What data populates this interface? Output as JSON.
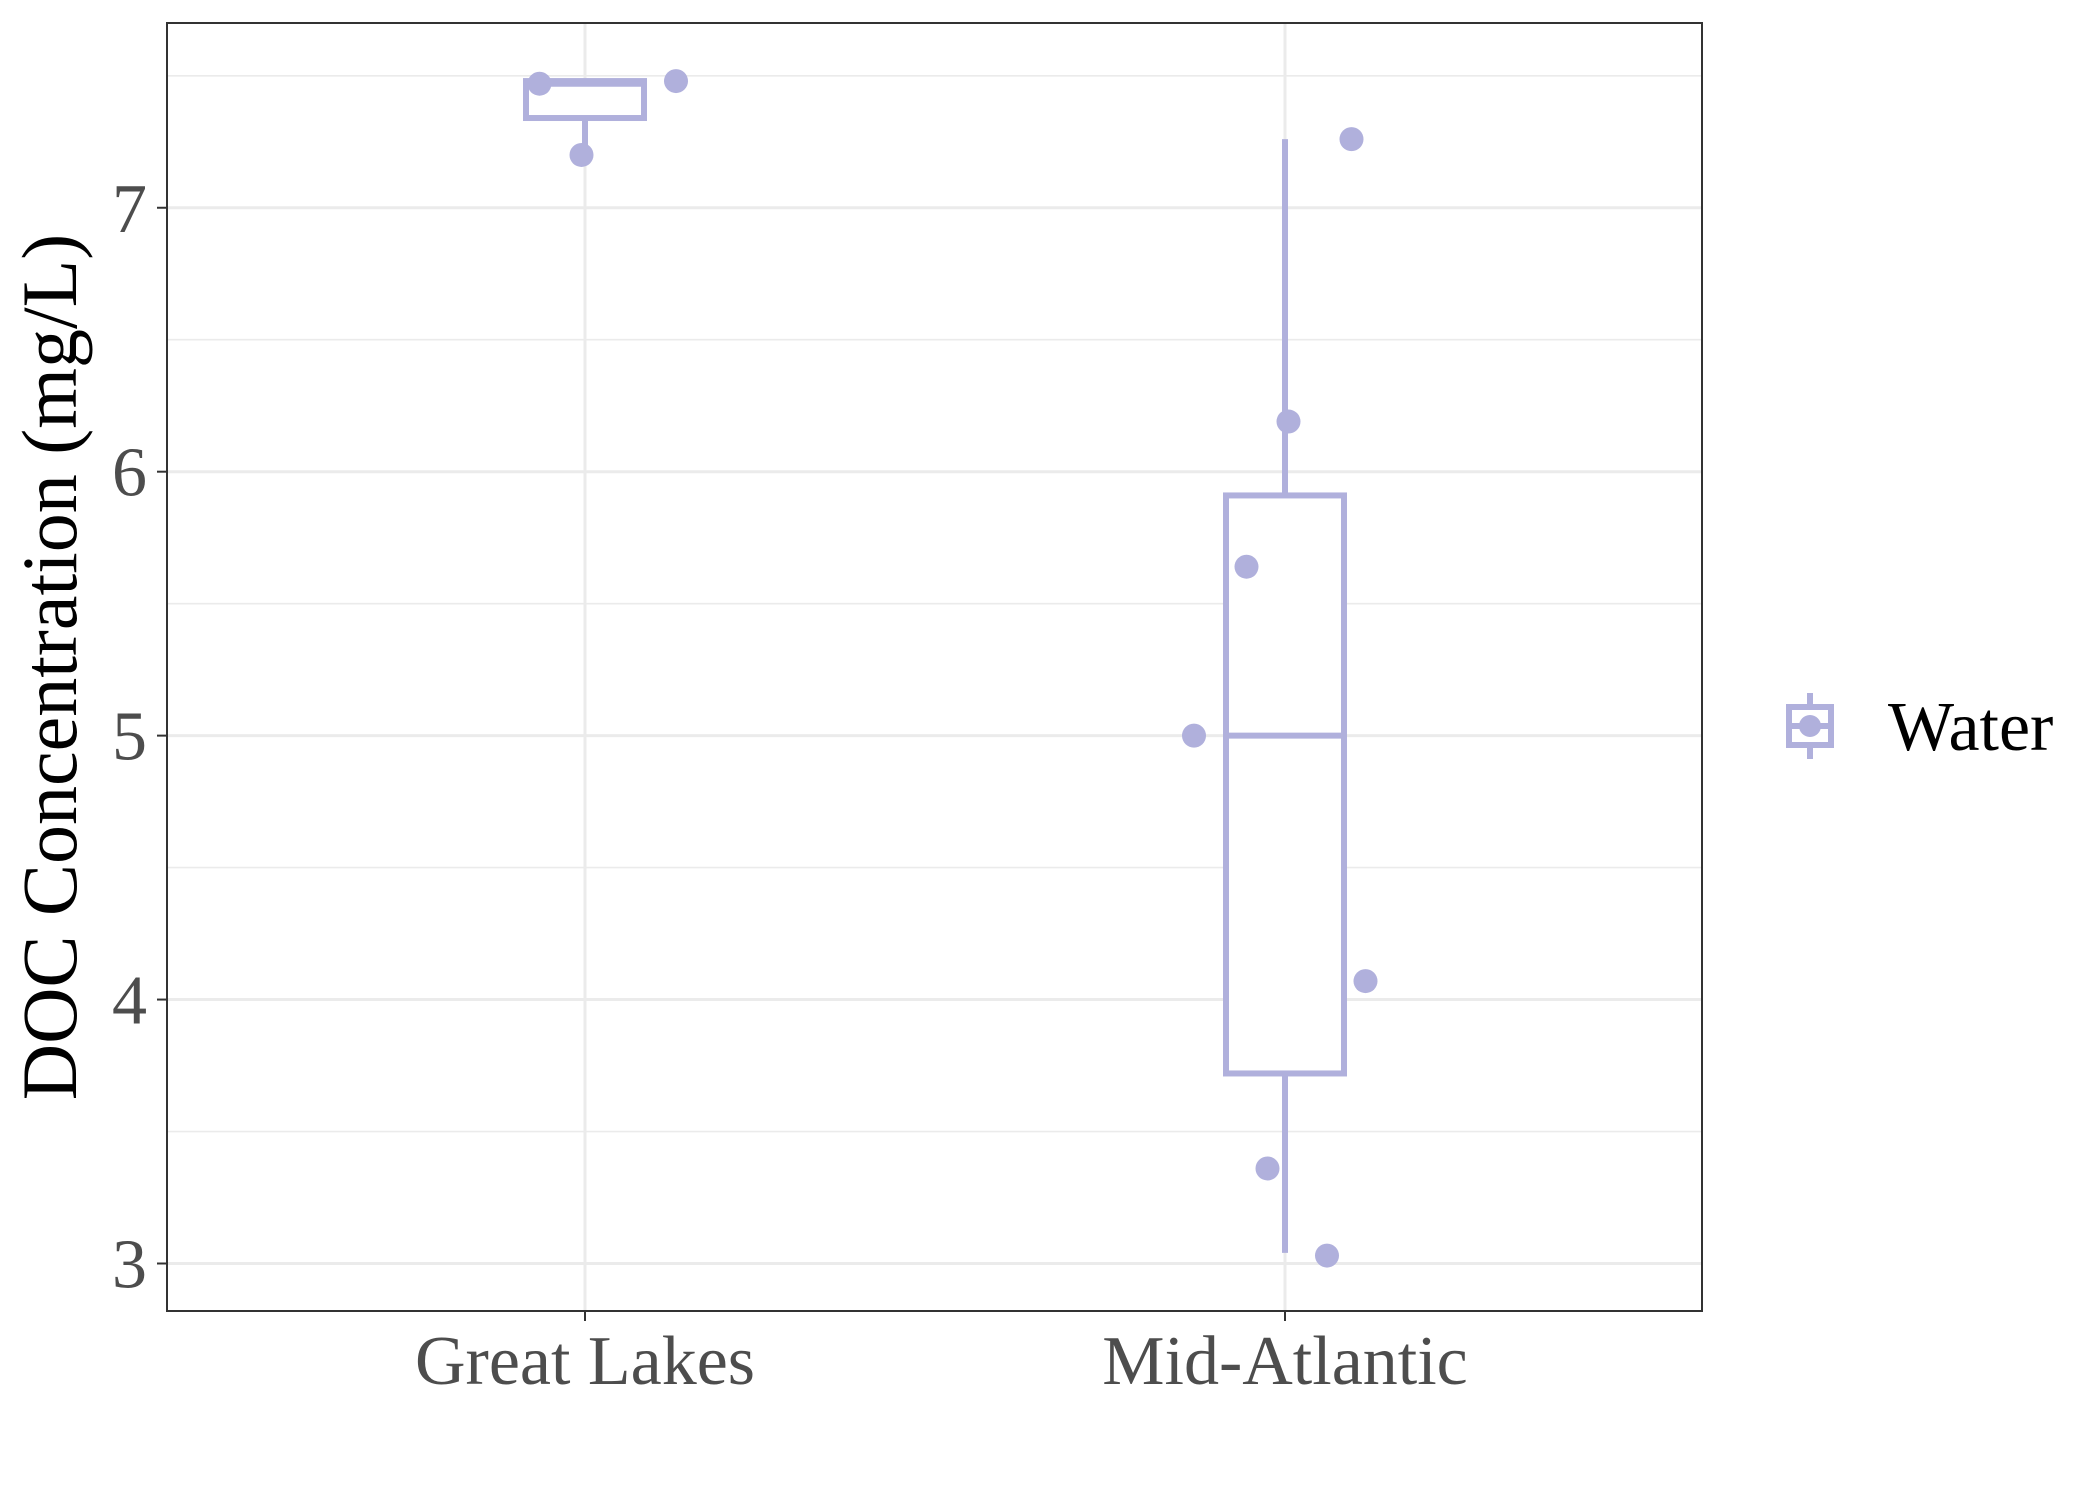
{
  "chart_data": {
    "type": "box",
    "title": "",
    "xlabel": "",
    "ylabel": "DOC Concentration (mg/L)",
    "categories": [
      "Great Lakes",
      "Mid-Atlantic"
    ],
    "ylim": [
      2.82,
      7.7
    ],
    "y_ticks": [
      3,
      4,
      5,
      6,
      7
    ],
    "grid": true,
    "legend_position": "right",
    "series": [
      {
        "name": "Water",
        "color": "#b0b0dc",
        "boxes": [
          {
            "category": "Great Lakes",
            "whisker_low": 7.2,
            "q1": 7.34,
            "median": 7.47,
            "q3": 7.48,
            "whisker_high": 7.48
          },
          {
            "category": "Mid-Atlantic",
            "whisker_low": 3.04,
            "q1": 3.72,
            "median": 5.0,
            "q3": 5.91,
            "whisker_high": 7.26
          }
        ],
        "points": [
          {
            "category": "Great Lakes",
            "jitter": -0.13,
            "y": 7.47
          },
          {
            "category": "Great Lakes",
            "jitter": 0.26,
            "y": 7.48
          },
          {
            "category": "Great Lakes",
            "jitter": -0.01,
            "y": 7.2
          },
          {
            "category": "Mid-Atlantic",
            "jitter": 0.19,
            "y": 7.26
          },
          {
            "category": "Mid-Atlantic",
            "jitter": 0.01,
            "y": 6.19
          },
          {
            "category": "Mid-Atlantic",
            "jitter": -0.11,
            "y": 5.64
          },
          {
            "category": "Mid-Atlantic",
            "jitter": -0.26,
            "y": 5.0
          },
          {
            "category": "Mid-Atlantic",
            "jitter": 0.23,
            "y": 4.07
          },
          {
            "category": "Mid-Atlantic",
            "jitter": -0.05,
            "y": 3.36
          },
          {
            "category": "Mid-Atlantic",
            "jitter": 0.12,
            "y": 3.03
          }
        ]
      }
    ]
  }
}
